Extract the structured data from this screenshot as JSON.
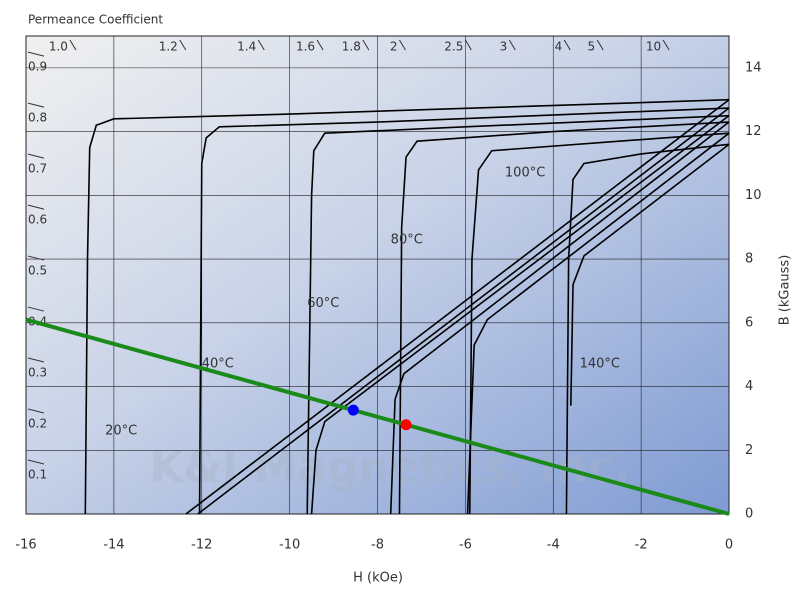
{
  "chart_data": {
    "type": "demag",
    "permeance_label": "Permeance Coefficient",
    "permeance_ticks": [
      0.1,
      0.2,
      0.3,
      0.4,
      0.5,
      0.6,
      0.7,
      0.8,
      0.9,
      {
        "value": 1,
        "label": "1.0"
      },
      1.2,
      1.4,
      1.6,
      1.8,
      2,
      2.5,
      3,
      4,
      5,
      10
    ],
    "x_label": "H (kOe)",
    "y_label": "B (kGauss)",
    "watermark": "K&J Magnetics, Inc.",
    "xlim": [
      -16,
      0
    ],
    "ylim": [
      0,
      15
    ],
    "xticks": [
      -16,
      -14,
      -12,
      -10,
      -8,
      -6,
      -4,
      -2,
      0
    ],
    "yticks": [
      0,
      2,
      4,
      6,
      8,
      10,
      12,
      14
    ],
    "grid": true,
    "series": [
      {
        "name": "20°C",
        "color": "#000000",
        "intrinsic": {
          "x": [
            0,
            -10,
            -14,
            -14.4,
            -14.55,
            -14.6,
            -14.65
          ],
          "y": [
            13.0,
            12.55,
            12.4,
            12.2,
            11.5,
            8,
            0
          ]
        },
        "normal": {
          "x": [
            0,
            -12.36
          ],
          "y": [
            13.0,
            0
          ]
        }
      },
      {
        "name": "40°C",
        "color": "#000000",
        "intrinsic": {
          "x": [
            0,
            -8,
            -11.6,
            -11.9,
            -12.0,
            -12.05
          ],
          "y": [
            12.74,
            12.3,
            12.15,
            11.8,
            11,
            0
          ]
        },
        "normal": {
          "x": [
            0,
            -12.09
          ],
          "y": [
            12.74,
            0
          ]
        }
      },
      {
        "name": "60°C",
        "color": "#000000",
        "intrinsic": {
          "x": [
            0,
            -6,
            -9.2,
            -9.45,
            -9.5,
            -9.6
          ],
          "y": [
            12.5,
            12.15,
            11.95,
            11.4,
            10,
            0
          ]
        },
        "normal": {
          "x": [
            0,
            -9.2,
            -9.4,
            -9.5
          ],
          "y": [
            12.5,
            2.9,
            2.0,
            0
          ]
        }
      },
      {
        "name": "80°C",
        "color": "#000000",
        "intrinsic": {
          "x": [
            0,
            -4,
            -7.1,
            -7.35,
            -7.45,
            -7.5
          ],
          "y": [
            12.3,
            12.0,
            11.7,
            11.2,
            9,
            0
          ]
        },
        "normal": {
          "x": [
            0,
            -7.4,
            -7.6,
            -7.7
          ],
          "y": [
            12.3,
            4.4,
            3.6,
            0
          ]
        }
      },
      {
        "name": "100°C",
        "color": "#000000",
        "intrinsic": {
          "x": [
            0,
            -2.5,
            -5.4,
            -5.7,
            -5.85,
            -5.9
          ],
          "y": [
            11.95,
            11.7,
            11.4,
            10.8,
            8,
            0
          ]
        },
        "normal": {
          "x": [
            0,
            -5.5,
            -5.8,
            -5.95
          ],
          "y": [
            11.95,
            6.1,
            5.3,
            0
          ]
        }
      },
      {
        "name": "140°C",
        "color": "#000000",
        "intrinsic": {
          "x": [
            0,
            -2,
            -3.3,
            -3.55,
            -3.65,
            -3.7
          ],
          "y": [
            11.6,
            11.3,
            11.0,
            10.5,
            8,
            0
          ]
        },
        "normal": {
          "x": [
            0,
            -3.3,
            -3.55,
            -3.6
          ],
          "y": [
            11.6,
            8.1,
            7.2,
            3.4
          ]
        }
      }
    ],
    "load_line": {
      "color": "#1a8a1a",
      "x": [
        -16,
        0
      ],
      "y": [
        6.1,
        0
      ]
    },
    "points": [
      {
        "color": "#0000ff",
        "x": -8.55,
        "y": 3.26
      },
      {
        "color": "#ff0000",
        "x": -7.35,
        "y": 2.8
      }
    ]
  }
}
